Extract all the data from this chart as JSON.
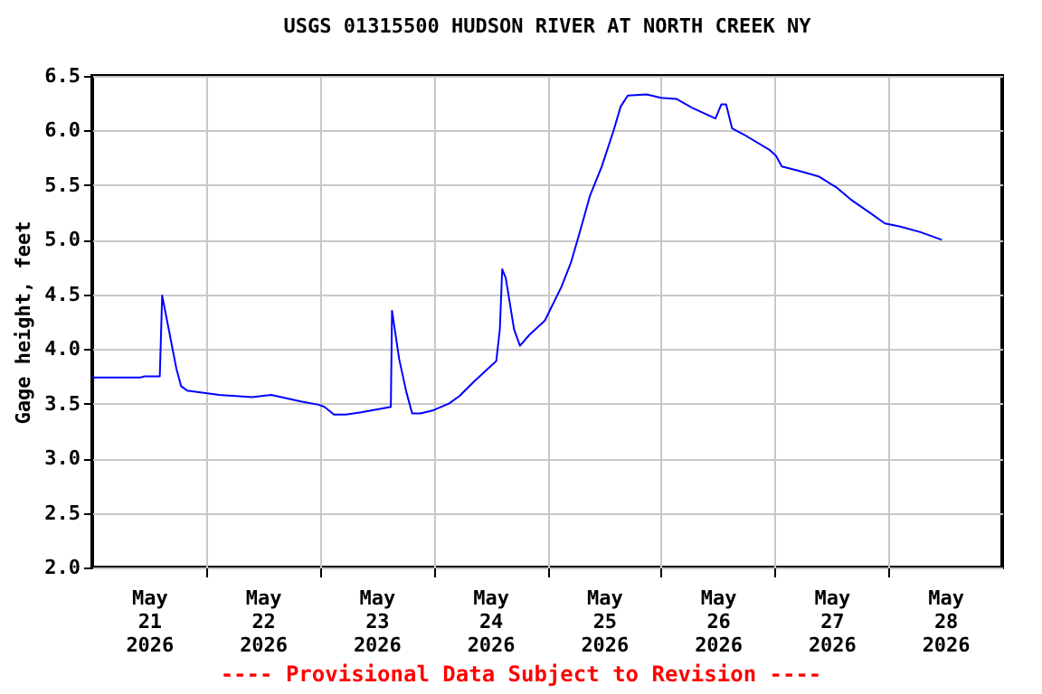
{
  "chart_data": {
    "type": "line",
    "title": "USGS 01315500 HUDSON RIVER AT NORTH CREEK NY",
    "ylabel": "Gage height, feet",
    "annotations": [
      "---- Provisional Data Subject to Revision ----"
    ],
    "xlim": [
      "2026-05-21T00:00",
      "2026-05-29T00:00"
    ],
    "xticks": [
      {
        "value": "2026-05-21T12:00",
        "label": "May 21 2026"
      },
      {
        "value": "2026-05-22T00:00",
        "label": null
      },
      {
        "value": "2026-05-22T12:00",
        "label": "May 22 2026"
      },
      {
        "value": "2026-05-23T00:00",
        "label": null
      },
      {
        "value": "2026-05-23T12:00",
        "label": "May 23 2026"
      },
      {
        "value": "2026-05-24T00:00",
        "label": null
      },
      {
        "value": "2026-05-24T12:00",
        "label": "May 24 2026"
      },
      {
        "value": "2026-05-25T00:00",
        "label": null
      },
      {
        "value": "2026-05-25T12:00",
        "label": "May 25 2026"
      },
      {
        "value": "2026-05-26T00:00",
        "label": null
      },
      {
        "value": "2026-05-26T12:00",
        "label": "May 26 2026"
      },
      {
        "value": "2026-05-27T00:00",
        "label": null
      },
      {
        "value": "2026-05-27T12:00",
        "label": "May 27 2026"
      },
      {
        "value": "2026-05-28T00:00",
        "label": null
      },
      {
        "value": "2026-05-28T12:00",
        "label": "May 28 2026"
      }
    ],
    "ylim": [
      2.0,
      6.5
    ],
    "yticks": [
      {
        "value": 2,
        "label": "2.0"
      },
      {
        "value": 2.5,
        "label": "2.5"
      },
      {
        "value": 3,
        "label": "3.0"
      },
      {
        "value": 3.5,
        "label": "3.5"
      },
      {
        "value": 4,
        "label": "4.0"
      },
      {
        "value": 4.5,
        "label": "4.5"
      },
      {
        "value": 5,
        "label": "5.0"
      },
      {
        "value": 5.5,
        "label": "5.5"
      },
      {
        "value": 6,
        "label": "6.0"
      },
      {
        "value": 6.5,
        "label": "6.5"
      }
    ],
    "grid": true,
    "x": [
      "2026-05-21T00:00",
      "2026-05-21T10:15",
      "2026-05-21T11:00",
      "2026-05-21T14:15",
      "2026-05-21T14:45",
      "2026-05-21T16:30",
      "2026-05-21T17:45",
      "2026-05-21T18:45",
      "2026-05-21T20:00",
      "2026-05-22T02:45",
      "2026-05-22T09:45",
      "2026-05-22T13:45",
      "2026-05-22T20:00",
      "2026-05-22T23:45",
      "2026-05-23T01:00",
      "2026-05-23T03:00",
      "2026-05-23T05:30",
      "2026-05-23T08:45",
      "2026-05-23T13:45",
      "2026-05-23T15:00",
      "2026-05-23T15:15",
      "2026-05-23T16:45",
      "2026-05-23T18:15",
      "2026-05-23T19:30",
      "2026-05-23T21:15",
      "2026-05-24T00:00",
      "2026-05-24T03:15",
      "2026-05-24T05:30",
      "2026-05-24T08:45",
      "2026-05-24T13:15",
      "2026-05-24T14:00",
      "2026-05-24T14:30",
      "2026-05-24T15:15",
      "2026-05-24T17:00",
      "2026-05-24T18:15",
      "2026-05-24T20:15",
      "2026-05-24T23:30",
      "2026-05-25T03:00",
      "2026-05-25T05:00",
      "2026-05-25T07:00",
      "2026-05-25T09:00",
      "2026-05-25T11:30",
      "2026-05-25T14:00",
      "2026-05-25T15:30",
      "2026-05-25T17:00",
      "2026-05-25T21:00",
      "2026-05-26T00:00",
      "2026-05-26T03:15",
      "2026-05-26T06:30",
      "2026-05-26T11:30",
      "2026-05-26T12:45",
      "2026-05-26T13:45",
      "2026-05-26T15:00",
      "2026-05-26T18:00",
      "2026-05-26T23:00",
      "2026-05-27T00:15",
      "2026-05-27T01:30",
      "2026-05-27T05:15",
      "2026-05-27T09:15",
      "2026-05-27T13:00",
      "2026-05-27T16:00",
      "2026-05-27T20:00",
      "2026-05-27T23:15",
      "2026-05-28T02:30",
      "2026-05-28T06:45",
      "2026-05-28T11:15"
    ],
    "series": [
      {
        "color": "#0000ff",
        "values": [
          3.74,
          3.74,
          3.75,
          3.75,
          4.49,
          4.1,
          3.82,
          3.66,
          3.62,
          3.58,
          3.56,
          3.58,
          3.52,
          3.49,
          3.47,
          3.4,
          3.4,
          3.42,
          3.46,
          3.47,
          4.35,
          3.91,
          3.61,
          3.41,
          3.41,
          3.44,
          3.5,
          3.57,
          3.71,
          3.89,
          4.18,
          4.73,
          4.65,
          4.18,
          4.03,
          4.13,
          4.26,
          4.57,
          4.79,
          5.09,
          5.4,
          5.67,
          6.0,
          6.22,
          6.32,
          6.33,
          6.3,
          6.29,
          6.21,
          6.11,
          6.24,
          6.24,
          6.02,
          5.95,
          5.82,
          5.77,
          5.67,
          5.63,
          5.58,
          5.48,
          5.37,
          5.25,
          5.15,
          5.12,
          5.07,
          5.0
        ]
      }
    ]
  }
}
